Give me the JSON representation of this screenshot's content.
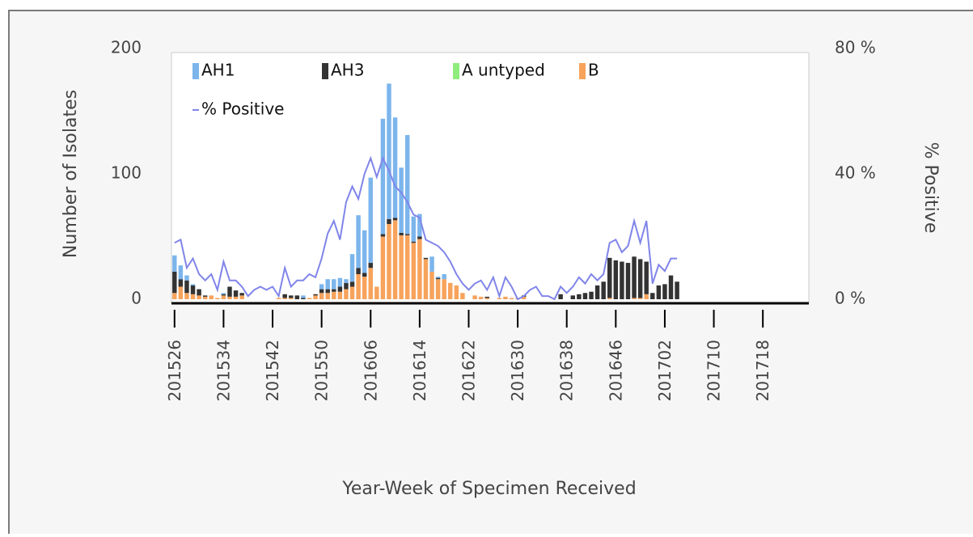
{
  "chart_data": {
    "type": "bar",
    "stacked": true,
    "x_label": "Year-Week of Specimen Received",
    "y_label": "Number of Isolates",
    "y2_label": "% Positive",
    "categories": [
      "201526",
      null,
      null,
      null,
      null,
      null,
      null,
      null,
      "201534",
      null,
      null,
      null,
      null,
      null,
      null,
      null,
      "201542",
      null,
      null,
      null,
      null,
      null,
      null,
      null,
      "201550",
      null,
      null,
      null,
      null,
      null,
      null,
      null,
      "201606",
      null,
      null,
      null,
      null,
      null,
      null,
      null,
      "201614",
      null,
      null,
      null,
      null,
      null,
      null,
      null,
      "201622",
      null,
      null,
      null,
      null,
      null,
      null,
      null,
      "201630",
      null,
      null,
      null,
      null,
      null,
      null,
      null,
      "201638",
      null,
      null,
      null,
      null,
      null,
      null,
      null,
      "201646",
      null,
      null,
      null,
      null,
      null,
      null,
      null,
      "201702",
      null,
      null,
      null,
      null,
      null,
      null,
      null,
      "201710",
      null,
      null,
      null,
      null,
      null,
      null,
      null,
      "201718",
      null,
      null,
      null,
      null,
      null,
      null,
      null
    ],
    "series": [
      {
        "name": "AH1",
        "color": "#7cb5ec",
        "values": [
          13,
          11,
          4,
          1,
          0,
          0,
          0,
          0,
          1,
          0,
          0,
          0,
          0,
          0,
          0,
          0,
          0,
          0,
          0,
          0,
          0,
          2,
          0,
          0,
          4,
          8,
          8,
          7,
          3,
          22,
          42,
          34,
          68,
          0,
          92,
          108,
          80,
          52,
          79,
          20,
          18,
          0,
          12,
          1,
          4,
          0,
          0,
          0,
          0,
          0,
          0,
          0,
          0,
          0,
          0,
          0,
          0,
          0,
          0,
          0,
          0,
          0,
          0,
          0,
          0,
          0,
          0,
          0,
          0,
          0,
          0,
          0,
          0,
          0,
          0,
          0,
          0,
          0,
          0,
          0,
          0,
          0,
          0,
          null,
          null,
          null,
          null,
          null,
          null,
          null,
          null,
          null,
          null,
          null,
          null,
          null,
          null,
          null,
          null,
          null,
          null,
          null,
          null,
          null
        ]
      },
      {
        "name": "AH3",
        "color": "#333333",
        "values": [
          17,
          6,
          10,
          7,
          5,
          1,
          0,
          0,
          1,
          8,
          5,
          2,
          0,
          0,
          0,
          0,
          0,
          0,
          3,
          2,
          3,
          1,
          0,
          1,
          3,
          3,
          2,
          4,
          5,
          4,
          5,
          3,
          4,
          0,
          2,
          4,
          2,
          2,
          1,
          1,
          2,
          1,
          0,
          1,
          0,
          0,
          0,
          0,
          0,
          0,
          0,
          1,
          0,
          0,
          0,
          0,
          0,
          1,
          0,
          0,
          0,
          0,
          0,
          4,
          0,
          3,
          4,
          5,
          6,
          11,
          14,
          32,
          31,
          30,
          29,
          33,
          31,
          26,
          5,
          11,
          12,
          19,
          14,
          null,
          null,
          null,
          null,
          null,
          null,
          null,
          null,
          null,
          null,
          null,
          null,
          null,
          null,
          null,
          null,
          null,
          null,
          null,
          null,
          null
        ]
      },
      {
        "name": "A untyped",
        "color": "#90ed7d",
        "values": [
          0,
          0,
          0,
          0,
          0,
          0,
          0,
          0,
          0,
          0,
          0,
          0,
          0,
          0,
          0,
          0,
          0,
          0,
          0,
          0,
          0,
          0,
          0,
          0,
          0,
          0,
          0,
          0,
          0,
          0,
          0,
          0,
          0,
          0,
          0,
          0,
          0,
          0,
          0,
          0,
          0,
          0,
          0,
          0,
          0,
          0,
          0,
          0,
          0,
          0,
          0,
          0,
          0,
          0,
          0,
          0,
          0,
          0,
          0,
          0,
          0,
          0,
          0,
          0,
          0,
          0,
          0,
          0,
          0,
          0,
          0,
          0,
          0,
          0,
          0,
          0,
          0,
          0,
          0,
          0,
          0,
          0,
          0,
          null,
          null,
          null,
          null,
          null,
          null,
          null,
          null,
          null,
          null,
          null,
          null,
          null,
          null,
          null,
          null,
          null,
          null,
          null,
          null,
          null
        ]
      },
      {
        "name": "B",
        "color": "#f7a35c",
        "values": [
          5,
          10,
          5,
          4,
          3,
          2,
          3,
          1,
          3,
          2,
          2,
          3,
          0,
          0,
          0,
          0,
          0,
          1,
          1,
          1,
          0,
          0,
          1,
          3,
          5,
          5,
          6,
          6,
          8,
          10,
          20,
          18,
          25,
          10,
          50,
          60,
          63,
          51,
          51,
          45,
          48,
          32,
          22,
          16,
          16,
          13,
          11,
          5,
          0,
          3,
          2,
          1,
          0,
          1,
          2,
          1,
          1,
          2,
          0,
          0,
          0,
          0,
          0,
          0,
          0,
          0,
          0,
          0,
          0,
          0,
          0,
          1,
          0,
          0,
          0,
          1,
          1,
          4,
          0,
          0,
          0,
          0,
          0,
          null,
          null,
          null,
          null,
          null,
          null,
          null,
          null,
          null,
          null,
          null,
          null,
          null,
          null,
          null,
          null,
          null,
          null,
          null,
          null,
          null
        ]
      },
      {
        "name": "% Positive",
        "type": "line",
        "axis": "y2",
        "color": "#8085e9",
        "values": [
          18,
          19,
          10,
          13,
          8,
          6,
          8,
          3,
          12,
          6,
          6,
          4,
          1,
          3,
          4,
          3,
          4,
          1,
          10,
          4,
          6,
          6,
          8,
          7,
          13,
          21,
          25,
          19,
          31,
          36,
          32,
          40,
          45,
          39,
          45,
          41,
          36,
          34,
          31,
          27,
          26,
          19,
          18,
          17,
          15,
          12,
          8,
          5,
          3,
          5,
          6,
          3,
          7,
          1,
          7,
          4,
          0,
          1,
          3,
          4,
          1,
          1,
          0,
          4,
          2,
          4,
          7,
          5,
          8,
          6,
          8,
          18,
          19,
          15,
          17,
          25,
          18,
          25,
          5,
          11,
          9,
          13,
          13,
          null,
          null,
          null,
          null,
          null,
          null,
          null,
          null,
          null,
          null,
          null,
          null,
          null,
          null,
          null,
          null,
          null,
          null,
          null,
          null,
          null
        ]
      }
    ],
    "ylim": [
      0,
      200
    ],
    "yticks": [
      0,
      100,
      200
    ],
    "y2lim": [
      0,
      80
    ],
    "y2ticks": [
      {
        "value": 0,
        "label": "0 %"
      },
      {
        "value": 40,
        "label": "40 %"
      },
      {
        "value": 80,
        "label": "80 %"
      }
    ],
    "legend": "top-left"
  }
}
